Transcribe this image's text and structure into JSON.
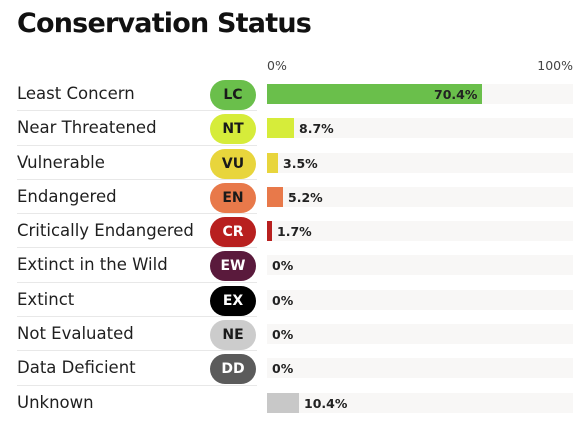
{
  "title": "Conservation Status",
  "axis": {
    "start_label": "0%",
    "end_label": "100%"
  },
  "chart_data": {
    "type": "bar",
    "orientation": "horizontal",
    "title": "Conservation Status",
    "xlim": [
      0,
      100
    ],
    "x_tick_labels": [
      "0%",
      "100%"
    ],
    "categories": [
      "Least Concern",
      "Near Threatened",
      "Vulnerable",
      "Endangered",
      "Critically Endangered",
      "Extinct in the Wild",
      "Extinct",
      "Not Evaluated",
      "Data Deficient",
      "Unknown"
    ],
    "codes": [
      "LC",
      "NT",
      "VU",
      "EN",
      "CR",
      "EW",
      "EX",
      "NE",
      "DD",
      ""
    ],
    "values": [
      70.4,
      8.7,
      3.5,
      5.2,
      1.7,
      0,
      0,
      0,
      0,
      10.4
    ],
    "value_labels": [
      "70.4%",
      "8.7%",
      "3.5%",
      "5.2%",
      "1.7%",
      "0%",
      "0%",
      "0%",
      "0%",
      "10.4%"
    ],
    "bar_colors": [
      "#6abf4b",
      "#d6ec3a",
      "#e8d53c",
      "#e8794a",
      "#b8201f",
      "#5a1a3c",
      "#000000",
      "#cccccc",
      "#5b5b5b",
      "#c8c8c8"
    ],
    "badge_text_colors": [
      "#1a1a1a",
      "#1a1a1a",
      "#1a1a1a",
      "#1a1a1a",
      "#ffffff",
      "#ffffff",
      "#ffffff",
      "#1a1a1a",
      "#ffffff",
      ""
    ]
  }
}
